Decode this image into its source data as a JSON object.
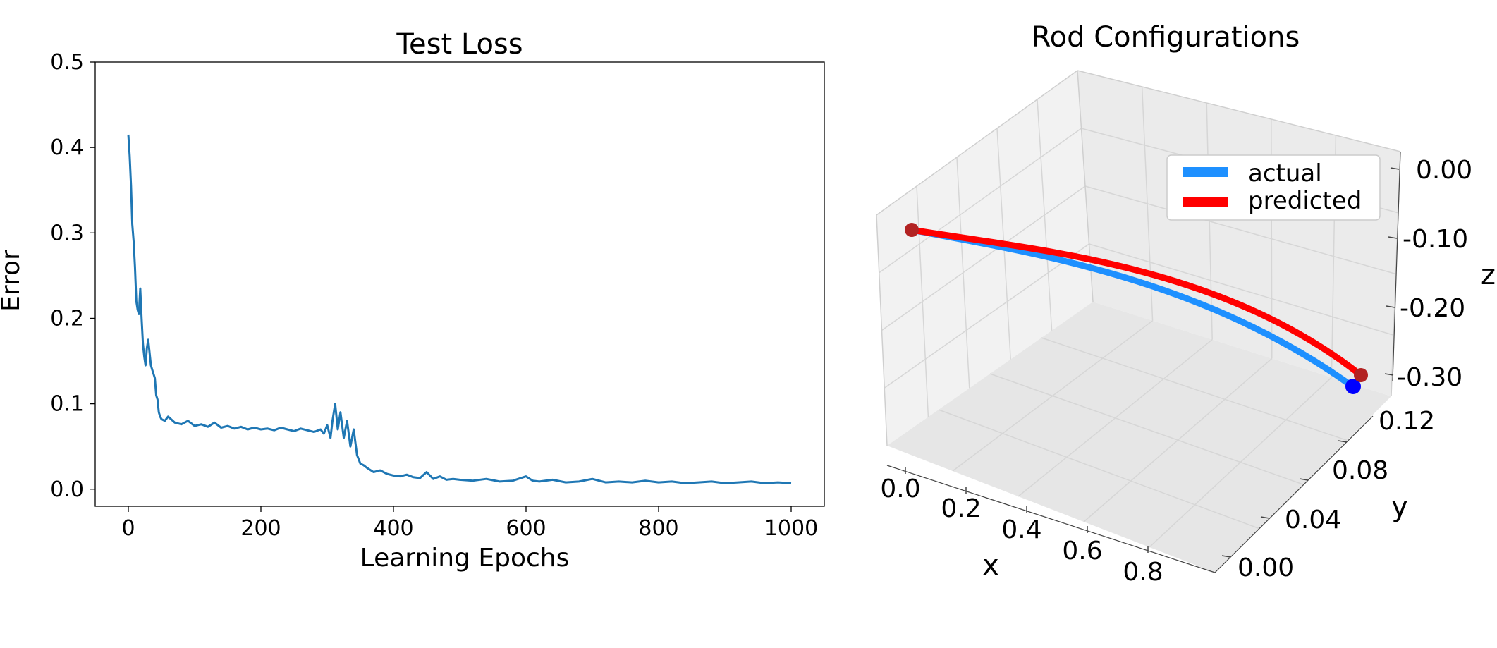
{
  "chart_data": [
    {
      "type": "line",
      "title": "Test Loss",
      "xlabel": "Learning Epochs",
      "ylabel": "Error",
      "xlim": [
        -50,
        1050
      ],
      "ylim": [
        -0.02,
        0.5
      ],
      "xticks": [
        0,
        200,
        400,
        600,
        800,
        1000
      ],
      "yticks": [
        0.0,
        0.1,
        0.2,
        0.3,
        0.4,
        0.5
      ],
      "xtick_labels": [
        "0",
        "200",
        "400",
        "600",
        "800",
        "1000"
      ],
      "ytick_labels": [
        "0.0",
        "0.1",
        "0.2",
        "0.3",
        "0.4",
        "0.5"
      ],
      "grid": false,
      "color": "#1f77b4",
      "series": [
        {
          "x": [
            0,
            2,
            4,
            6,
            8,
            10,
            12,
            14,
            16,
            18,
            20,
            22,
            24,
            26,
            28,
            30,
            32,
            34,
            36,
            38,
            40,
            42,
            44,
            46,
            48,
            50,
            55,
            60,
            70,
            80,
            90,
            100,
            110,
            120,
            130,
            140,
            150,
            160,
            170,
            180,
            190,
            200,
            210,
            220,
            230,
            240,
            250,
            260,
            270,
            280,
            290,
            295,
            300,
            305,
            308,
            312,
            316,
            320,
            325,
            330,
            335,
            340,
            345,
            350,
            355,
            360,
            370,
            380,
            390,
            400,
            410,
            420,
            430,
            440,
            450,
            460,
            470,
            480,
            490,
            500,
            520,
            540,
            560,
            580,
            600,
            610,
            620,
            640,
            660,
            680,
            700,
            720,
            740,
            760,
            780,
            800,
            820,
            840,
            860,
            880,
            900,
            920,
            940,
            960,
            980,
            1000
          ],
          "y": [
            0.415,
            0.39,
            0.355,
            0.31,
            0.29,
            0.26,
            0.22,
            0.21,
            0.205,
            0.235,
            0.2,
            0.17,
            0.155,
            0.145,
            0.165,
            0.175,
            0.16,
            0.145,
            0.14,
            0.135,
            0.13,
            0.11,
            0.105,
            0.09,
            0.085,
            0.082,
            0.08,
            0.085,
            0.078,
            0.076,
            0.08,
            0.074,
            0.076,
            0.073,
            0.078,
            0.072,
            0.074,
            0.071,
            0.073,
            0.07,
            0.072,
            0.07,
            0.071,
            0.069,
            0.072,
            0.07,
            0.068,
            0.071,
            0.069,
            0.067,
            0.07,
            0.065,
            0.075,
            0.06,
            0.08,
            0.1,
            0.07,
            0.09,
            0.06,
            0.08,
            0.05,
            0.07,
            0.04,
            0.03,
            0.028,
            0.025,
            0.02,
            0.022,
            0.018,
            0.016,
            0.015,
            0.017,
            0.014,
            0.013,
            0.02,
            0.012,
            0.015,
            0.011,
            0.012,
            0.011,
            0.01,
            0.012,
            0.009,
            0.01,
            0.015,
            0.01,
            0.009,
            0.011,
            0.008,
            0.009,
            0.012,
            0.008,
            0.009,
            0.008,
            0.01,
            0.008,
            0.009,
            0.007,
            0.008,
            0.009,
            0.007,
            0.008,
            0.009,
            0.007,
            0.008,
            0.007
          ]
        }
      ]
    },
    {
      "type": "line",
      "subtype": "3d",
      "title": "Rod Configurations",
      "xlabel": "x",
      "ylabel": "y",
      "zlabel": "z",
      "xticks": [
        "0.0",
        "0.2",
        "0.4",
        "0.6",
        "0.8"
      ],
      "yticks": [
        "0.00",
        "0.04",
        "0.08",
        "0.12"
      ],
      "zticks": [
        "0.00",
        "-0.10",
        "-0.20",
        "-0.30"
      ],
      "xlim": [
        0.0,
        0.9
      ],
      "ylim": [
        0.0,
        0.14
      ],
      "zlim": [
        -0.33,
        0.0
      ],
      "grid": true,
      "legend": "upper-right",
      "series": [
        {
          "name": "actual",
          "color": "#1e90ff",
          "end_marker_color": "#0000ff",
          "x": [
            0.0,
            0.15,
            0.3,
            0.45,
            0.6,
            0.72,
            0.82,
            0.88
          ],
          "y": [
            0.12,
            0.12,
            0.12,
            0.12,
            0.12,
            0.12,
            0.12,
            0.12
          ],
          "z": [
            -0.08,
            -0.1,
            -0.12,
            -0.15,
            -0.19,
            -0.24,
            -0.29,
            -0.33
          ]
        },
        {
          "name": "predicted",
          "color": "#ff0000",
          "end_marker_color": "#b22222",
          "x": [
            0.0,
            0.15,
            0.3,
            0.45,
            0.6,
            0.72,
            0.82,
            0.9
          ],
          "y": [
            0.12,
            0.12,
            0.12,
            0.12,
            0.12,
            0.12,
            0.12,
            0.12
          ],
          "z": [
            -0.08,
            -0.1,
            -0.12,
            -0.14,
            -0.18,
            -0.22,
            -0.27,
            -0.31
          ]
        }
      ]
    }
  ]
}
